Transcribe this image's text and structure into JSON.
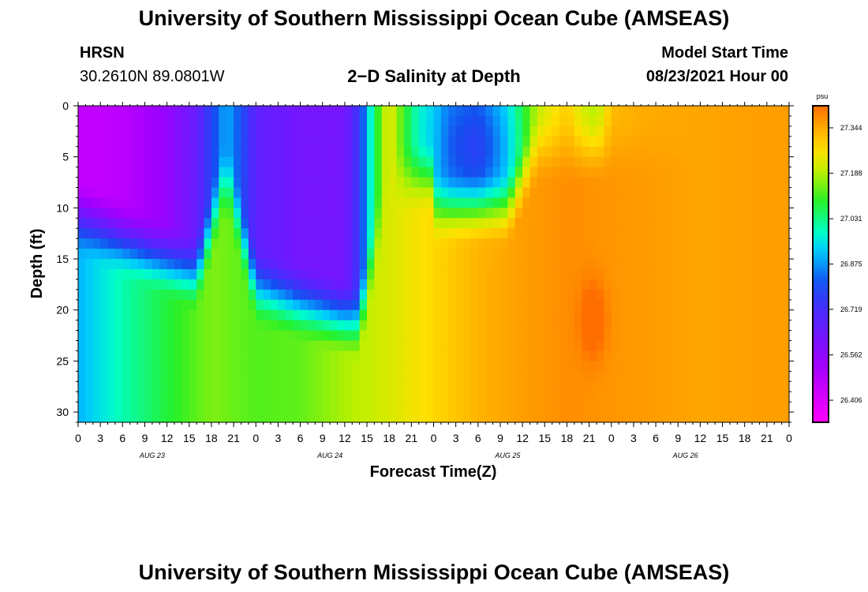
{
  "titles": {
    "top": "University of Southern Mississippi Ocean Cube (AMSEAS)",
    "bottom": "University of Southern Mississippi Ocean Cube (AMSEAS)"
  },
  "header": {
    "station": "HRSN",
    "coords": "30.2610N  89.0801W",
    "plot_title": "2−D Salinity at Depth",
    "model_label": "Model Start Time",
    "model_time": "08/23/2021 Hour 00"
  },
  "chart_data": {
    "type": "heatmap",
    "title": "2-D Salinity at Depth",
    "xlabel": "Forecast Time(Z)",
    "ylabel": "Depth (ft)",
    "x_range_hours": [
      0,
      96
    ],
    "y_range_ft": [
      0,
      31
    ],
    "y_ticks": [
      0,
      5,
      10,
      15,
      20,
      25,
      30
    ],
    "x_tick_labels": [
      "0",
      "3",
      "6",
      "9",
      "12",
      "15",
      "18",
      "21",
      "0",
      "3",
      "6",
      "9",
      "12",
      "15",
      "18",
      "21",
      "0",
      "3",
      "6",
      "9",
      "12",
      "15",
      "18",
      "21",
      "0",
      "3",
      "6",
      "9",
      "12",
      "15",
      "18",
      "21",
      "0"
    ],
    "date_labels": [
      {
        "label": "AUG 23",
        "hour": 10
      },
      {
        "label": "AUG 24",
        "hour": 34
      },
      {
        "label": "AUG 25",
        "hour": 58
      },
      {
        "label": "AUG 26",
        "hour": 82
      }
    ],
    "colorbar": {
      "unit": "psu",
      "min": 26.33,
      "max": 27.42,
      "tick_values": [
        26.406,
        26.562,
        26.719,
        26.875,
        27.031,
        27.188,
        27.344
      ],
      "tick_labels": [
        "26.406",
        "26.562",
        "26.719",
        "26.875",
        "27.031",
        "27.188",
        "27.344"
      ]
    },
    "surface_salinity_by_hour": [
      [
        0,
        26.45
      ],
      [
        6,
        26.47
      ],
      [
        12,
        26.55
      ],
      [
        16,
        26.65
      ],
      [
        18,
        26.78
      ],
      [
        20,
        26.9
      ],
      [
        22,
        26.8
      ],
      [
        24,
        26.67
      ],
      [
        30,
        26.62
      ],
      [
        36,
        26.62
      ],
      [
        38,
        26.75
      ],
      [
        40,
        27.05
      ],
      [
        42,
        27.25
      ],
      [
        44,
        27.1
      ],
      [
        46,
        26.98
      ],
      [
        48,
        26.93
      ],
      [
        50,
        26.86
      ],
      [
        54,
        26.85
      ],
      [
        58,
        26.95
      ],
      [
        62,
        27.2
      ],
      [
        66,
        27.3
      ],
      [
        68,
        27.22
      ],
      [
        70,
        27.18
      ],
      [
        72,
        27.32
      ],
      [
        76,
        27.34
      ],
      [
        84,
        27.35
      ],
      [
        96,
        27.36
      ]
    ],
    "bottom_salinity_by_hour": [
      [
        0,
        26.9
      ],
      [
        6,
        27.0
      ],
      [
        12,
        27.08
      ],
      [
        18,
        27.15
      ],
      [
        24,
        27.12
      ],
      [
        30,
        27.13
      ],
      [
        36,
        27.18
      ],
      [
        42,
        27.22
      ],
      [
        48,
        27.28
      ],
      [
        54,
        27.33
      ],
      [
        60,
        27.36
      ],
      [
        66,
        27.38
      ],
      [
        72,
        27.37
      ],
      [
        78,
        27.36
      ],
      [
        84,
        27.35
      ],
      [
        96,
        27.36
      ]
    ],
    "notes": "Low-salinity (magenta/purple) surface layer over first ~40 h, fresher lens near hours 50-58, saltier orange water below ~15 ft after hour 60, local maximum near hour 70 at ~20-23 ft."
  }
}
